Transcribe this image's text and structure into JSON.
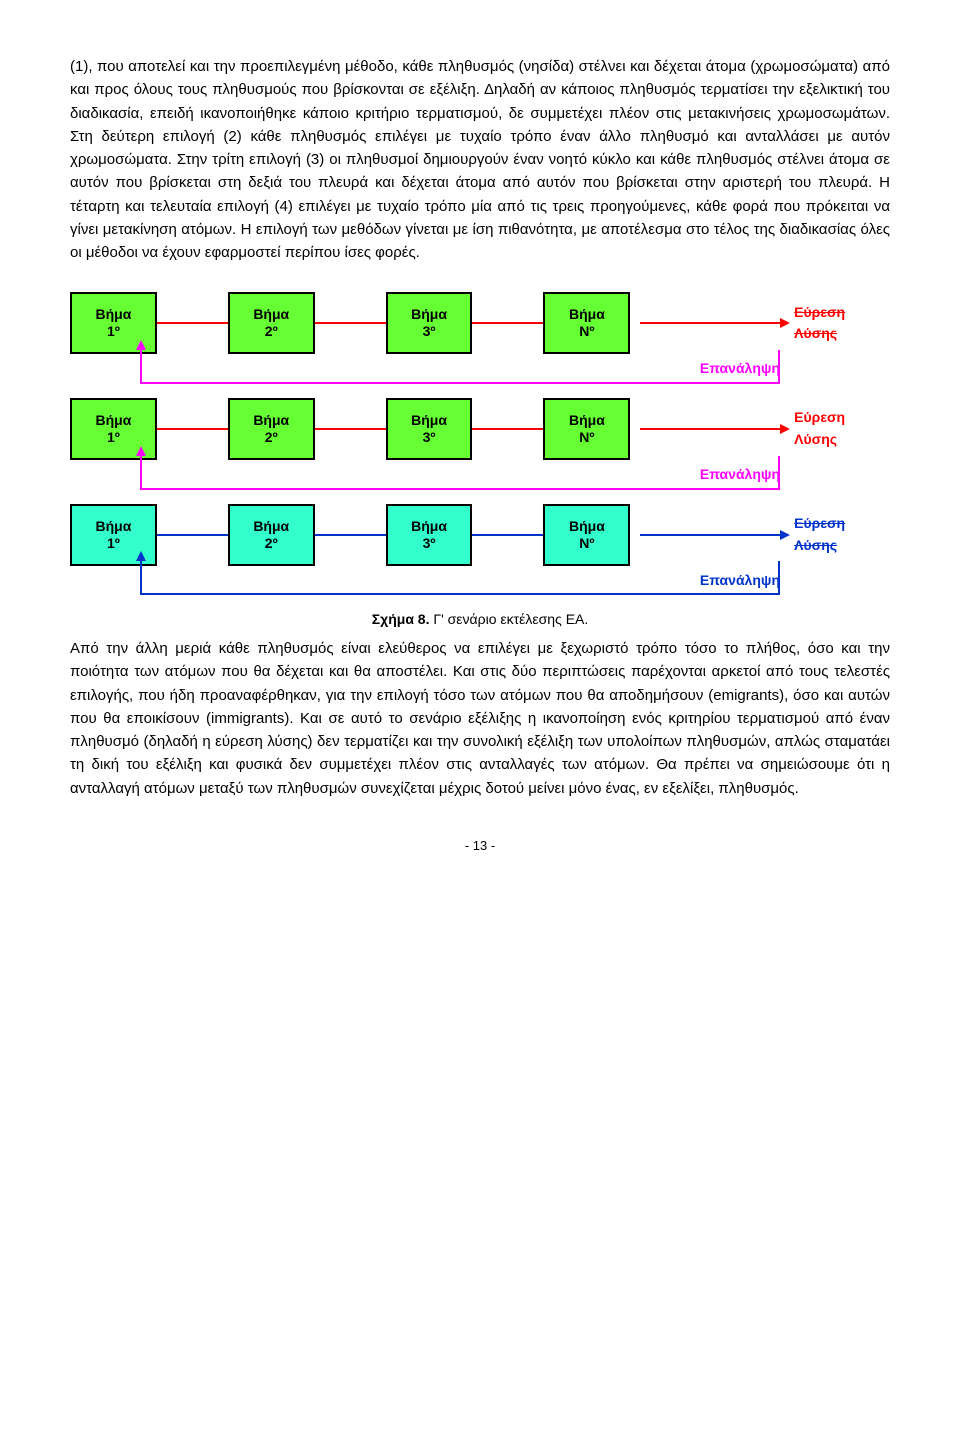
{
  "paragraph_top": "(1), που αποτελεί και την προεπιλεγμένη μέθοδο, κάθε πληθυσμός (νησίδα) στέλνει και δέχεται άτομα (χρωμοσώματα) από και προς όλους τους πληθυσμούς που βρίσκονται σε εξέλιξη. Δηλαδή αν κάποιος πληθυσμός τερματίσει την εξελικτική του διαδικασία, επειδή ικανοποιήθηκε κάποιο κριτήριο τερματισμού, δε συμμετέχει πλέον στις μετακινήσεις χρωμοσωμάτων. Στη δεύτερη επιλογή (2) κάθε πληθυσμός επιλέγει με τυχαίο τρόπο έναν άλλο πληθυσμό και ανταλλάσει με αυτόν χρωμοσώματα. Στην τρίτη επιλογή (3) οι πληθυσμοί δημιουργούν έναν νοητό κύκλο και κάθε πληθυσμός στέλνει άτομα σε αυτόν που βρίσκεται στη δεξιά του πλευρά και δέχεται άτομα από αυτόν που βρίσκεται στην αριστερή του πλευρά. Η τέταρτη και τελευταία επιλογή (4) επιλέγει με τυχαίο τρόπο μία από τις τρεις προηγούμενες, κάθε φορά που πρόκειται να γίνει μετακίνηση ατόμων. Η επιλογή των μεθόδων γίνεται με ίση πιθανότητα, με αποτέλεσμα στο τέλος της διαδικασίας όλες οι μέθοδοι να έχουν εφαρμοστεί περίπου ίσες φορές.",
  "diagram": {
    "rows": [
      {
        "box_bg": "#66ff33",
        "line_color": "#ff0000",
        "repeat_color": "#ff00ff",
        "solution_strike": true
      },
      {
        "box_bg": "#66ff33",
        "line_color": "#ff0000",
        "repeat_color": "#ff00ff",
        "solution_strike": false
      },
      {
        "box_bg": "#33ffcc",
        "line_color": "#0033cc",
        "repeat_color": "#0033cc",
        "solution_strike": true
      }
    ],
    "step_word": "Βήμα",
    "steps": [
      "1º",
      "2º",
      "3º",
      "Nº"
    ],
    "solution_label": "Εύρεση Λύσης",
    "repeat_label": "Επανάληψη"
  },
  "caption_bold": "Σχήμα 8.",
  "caption_rest": " Γ' σενάριο εκτέλεσης ΕΑ.",
  "paragraph_bottom": "Από την άλλη μεριά κάθε πληθυσμός είναι ελεύθερος να επιλέγει με ξεχωριστό τρόπο τόσο το πλήθος, όσο και την ποιότητα των ατόμων που θα δέχεται και θα αποστέλει. Και στις δύο περιπτώσεις παρέχονται αρκετοί από τους τελεστές επιλογής, που ήδη προαναφέρθηκαν, για την επιλογή τόσο των ατόμων που θα αποδημήσουν (emigrants), όσο και αυτών που θα εποικίσουν (immigrants). Και σε αυτό το σενάριο εξέλιξης η ικανοποίηση ενός κριτηρίου τερματισμού από έναν πληθυσμό (δηλαδή η εύρεση λύσης) δεν τερματίζει και την συνολική εξέλιξη των υπολοίπων πληθυσμών, απλώς σταματάει τη δική του εξέλιξη και φυσικά δεν συμμετέχει πλέον στις ανταλλαγές των ατόμων. Θα πρέπει να σημειώσουμε ότι η ανταλλαγή ατόμων μεταξύ των πληθυσμών συνεχίζεται μέχρις δοτού μείνει μόνο ένας, εν εξελίξει, πληθυσμός.",
  "page_number": "- 13 -"
}
